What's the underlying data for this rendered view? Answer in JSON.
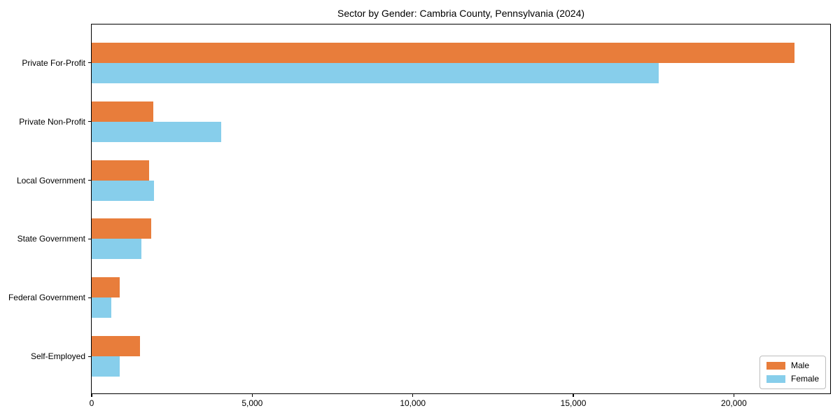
{
  "chart_data": {
    "type": "bar",
    "orientation": "horizontal",
    "title": "Sector by Gender: Cambria County, Pennsylvania (2024)",
    "categories": [
      "Private For-Profit",
      "Private Non-Profit",
      "Local Government",
      "State Government",
      "Federal Government",
      "Self-Employed"
    ],
    "series": [
      {
        "name": "Male",
        "color": "#e87d3b",
        "values": [
          21890,
          1910,
          1780,
          1860,
          870,
          1500
        ]
      },
      {
        "name": "Female",
        "color": "#87ceeb",
        "values": [
          17660,
          4030,
          1940,
          1550,
          620,
          870
        ]
      }
    ],
    "xlabel": "",
    "ylabel": "",
    "xlim": [
      0,
      23000
    ],
    "x_ticks": [
      0,
      5000,
      10000,
      15000,
      20000
    ],
    "x_tick_labels": [
      "0",
      "5,000",
      "10,000",
      "15,000",
      "20,000"
    ],
    "grid": false,
    "legend_position": "lower right"
  },
  "legend": {
    "male_label": "Male",
    "female_label": "Female"
  }
}
